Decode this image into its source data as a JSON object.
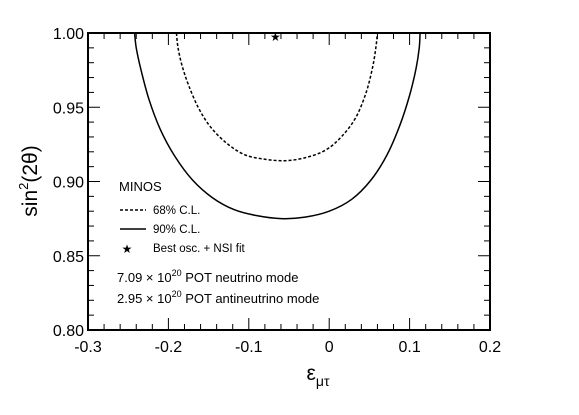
{
  "chart_data": {
    "type": "line",
    "xlabel": "ε",
    "xlabel_sub": "μτ",
    "ylabel": "sin",
    "ylabel_sup": "2",
    "ylabel_tail": "(2θ)",
    "xlim": [
      -0.3,
      0.2
    ],
    "ylim": [
      0.8,
      1.0
    ],
    "x_ticks": [
      -0.3,
      -0.2,
      -0.1,
      0,
      0.1,
      0.2
    ],
    "x_tick_labels": [
      "-0.3",
      "-0.2",
      "-0.1",
      "0",
      "0.1",
      "0.2"
    ],
    "y_ticks": [
      0.8,
      0.85,
      0.9,
      0.95,
      1.0
    ],
    "y_tick_labels": [
      "0.80",
      "0.85",
      "0.90",
      "0.95",
      "1.00"
    ],
    "legend_title": "MINOS",
    "series": [
      {
        "name": "68% C.L.",
        "style": "dashed",
        "points": [
          [
            -0.19,
            1.0
          ],
          [
            -0.188,
            0.99
          ],
          [
            -0.183,
            0.978
          ],
          [
            -0.175,
            0.965
          ],
          [
            -0.163,
            0.95
          ],
          [
            -0.148,
            0.937
          ],
          [
            -0.128,
            0.926
          ],
          [
            -0.105,
            0.918
          ],
          [
            -0.08,
            0.915
          ],
          [
            -0.055,
            0.914
          ],
          [
            -0.03,
            0.916
          ],
          [
            -0.005,
            0.921
          ],
          [
            0.015,
            0.93
          ],
          [
            0.033,
            0.943
          ],
          [
            0.046,
            0.96
          ],
          [
            0.054,
            0.977
          ],
          [
            0.058,
            0.99
          ],
          [
            0.06,
            1.0
          ]
        ]
      },
      {
        "name": "90% C.L.",
        "style": "solid",
        "points": [
          [
            -0.242,
            1.0
          ],
          [
            -0.24,
            0.99
          ],
          [
            -0.234,
            0.975
          ],
          [
            -0.224,
            0.955
          ],
          [
            -0.21,
            0.935
          ],
          [
            -0.192,
            0.917
          ],
          [
            -0.17,
            0.901
          ],
          [
            -0.145,
            0.889
          ],
          [
            -0.118,
            0.881
          ],
          [
            -0.09,
            0.877
          ],
          [
            -0.06,
            0.875
          ],
          [
            -0.03,
            0.876
          ],
          [
            0.0,
            0.88
          ],
          [
            0.028,
            0.888
          ],
          [
            0.052,
            0.901
          ],
          [
            0.072,
            0.918
          ],
          [
            0.088,
            0.938
          ],
          [
            0.1,
            0.958
          ],
          [
            0.108,
            0.976
          ],
          [
            0.112,
            0.99
          ],
          [
            0.113,
            1.0
          ]
        ]
      }
    ],
    "best_fit": {
      "name": "Best osc. + NSI fit",
      "x": -0.067,
      "y": 0.998
    },
    "annotations": {
      "line1_coef": "7.09",
      "line1_times": " × 10",
      "line1_exp": "20",
      "line1_tail": " POT neutrino mode",
      "line2_coef": "2.95",
      "line2_times": " × 10",
      "line2_exp": "20",
      "line2_tail": " POT antineutrino mode"
    },
    "grid": false,
    "legend_position": "bottom-left"
  }
}
